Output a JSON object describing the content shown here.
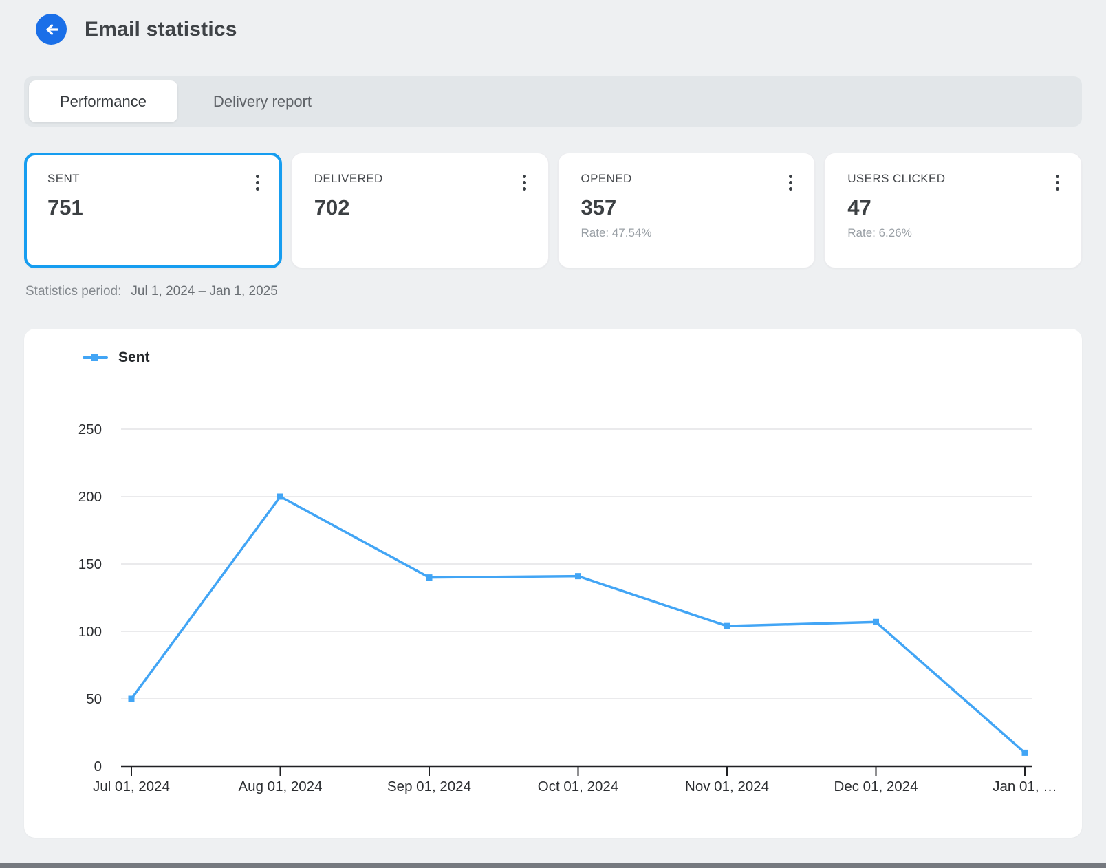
{
  "header": {
    "title": "Email statistics"
  },
  "icons": {
    "back": "arrow-left-icon",
    "card_menu": "kebab-vertical-icon",
    "legend_marker": "line-with-square-marker"
  },
  "tabs": [
    {
      "label": "Performance",
      "active": true
    },
    {
      "label": "Delivery report",
      "active": false
    }
  ],
  "stat_cards": [
    {
      "label": "SENT",
      "value": "751",
      "rate": "",
      "selected": true
    },
    {
      "label": "DELIVERED",
      "value": "702",
      "rate": "",
      "selected": false
    },
    {
      "label": "OPENED",
      "value": "357",
      "rate": "Rate: 47.54%",
      "selected": false
    },
    {
      "label": "USERS CLICKED",
      "value": "47",
      "rate": "Rate: 6.26%",
      "selected": false
    }
  ],
  "statistics_period": {
    "label": "Statistics period:",
    "value": "Jul 1, 2024 – Jan 1, 2025"
  },
  "colors": {
    "accent_blue": "#1a6fe8",
    "selected_card_border": "#169df0",
    "line_blue": "#42a5f5",
    "page_background": "#eef0f2"
  },
  "chart_data": {
    "type": "line",
    "title": "",
    "legend": [
      {
        "name": "Sent",
        "color": "#42a5f5"
      }
    ],
    "legend_position": "top-left",
    "grid": true,
    "x_labels": [
      "Jul 01, 2024",
      "Aug 01, 2024",
      "Sep 01, 2024",
      "Oct 01, 2024",
      "Nov 01, 2024",
      "Dec 01, 2024",
      "Jan 01, …"
    ],
    "series": [
      {
        "name": "Sent",
        "values": [
          50,
          200,
          140,
          141,
          104,
          107,
          10
        ]
      }
    ],
    "ylim": [
      0,
      250
    ],
    "yticks": [
      0,
      50,
      100,
      150,
      200,
      250
    ],
    "xlabel": "",
    "ylabel": ""
  }
}
